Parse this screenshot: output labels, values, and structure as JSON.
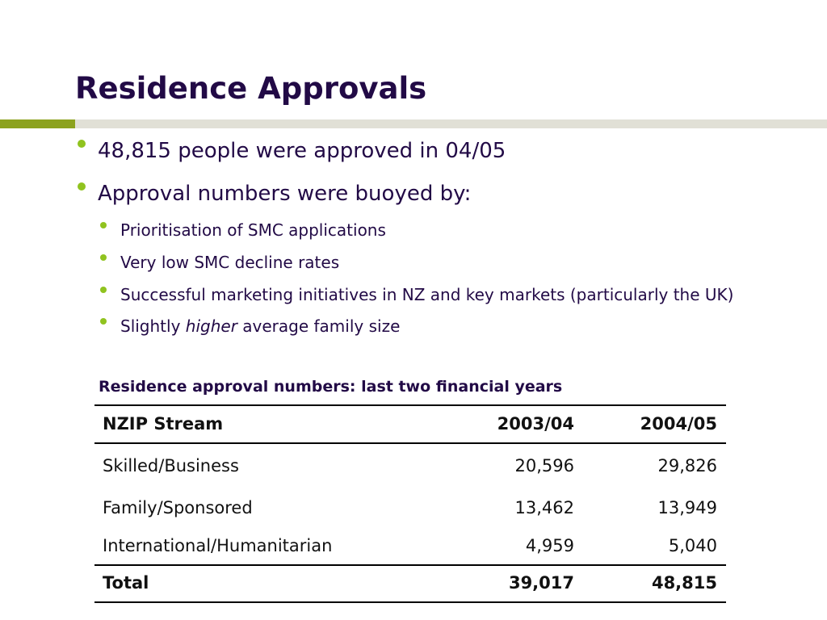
{
  "slide": {
    "title": "Residence Approvals",
    "bullets": [
      "48,815 people were approved in 04/05",
      "Approval numbers were buoyed by:"
    ],
    "sub_bullets": [
      "Prioritisation of SMC applications",
      "Very low SMC decline rates",
      "Successful marketing initiatives in NZ and key markets (particularly the UK)",
      {
        "before": "Slightly ",
        "emphasis": "higher",
        "after": " average family size"
      }
    ],
    "table": {
      "caption": "Residence approval numbers: last two financial years",
      "headers": [
        "NZIP Stream",
        "2003/04",
        "2004/05"
      ],
      "rows": [
        [
          "Skilled/Business",
          "20,596",
          "29,826"
        ],
        [
          "Family/Sponsored",
          "13,462",
          "13,949"
        ],
        [
          "International/Humanitarian",
          "4,959",
          "5,040"
        ]
      ],
      "total": [
        "Total",
        "39,017",
        "48,815"
      ]
    },
    "colors": {
      "title": "#220a46",
      "bullet": "#90c31f",
      "accent_bar": "#8ca21e",
      "rule": "#e1e0d6"
    }
  }
}
